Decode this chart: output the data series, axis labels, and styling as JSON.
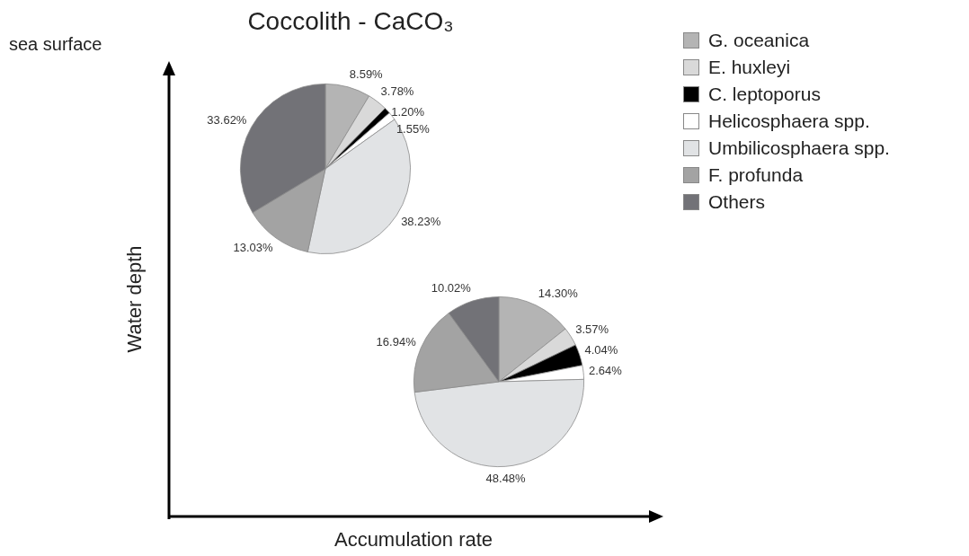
{
  "chart_data": [
    {
      "type": "pie",
      "title": "Coccolith - CaCO₃",
      "xlabel": "Accumulation rate",
      "ylabel": "Water depth",
      "annotations": [
        "sea surface"
      ],
      "legend": "right",
      "categories": [
        "G. oceanica",
        "E. huxleyi",
        "C. leptoporus",
        "Helicosphaera spp.",
        "Umbilicosphaera spp.",
        "F. profunda",
        "Others"
      ],
      "values": [
        8.59,
        3.78,
        1.2,
        1.55,
        38.23,
        13.03,
        33.62
      ],
      "value_labels": [
        "8.59%",
        "3.78%",
        "1.20%",
        "1.55%",
        "38.23%",
        "13.03%",
        "33.62%"
      ],
      "colors": [
        "#b4b4b4",
        "#d9d9d9",
        "#000000",
        "#ffffff",
        "#e1e3e5",
        "#a3a3a3",
        "#727277"
      ]
    },
    {
      "type": "pie",
      "values": [
        14.3,
        3.57,
        4.04,
        2.64,
        48.48,
        16.94,
        10.02
      ],
      "value_labels": [
        "14.30%",
        "3.57%",
        "4.04%",
        "2.64%",
        "48.48%",
        "16.94%",
        "10.02%"
      ],
      "colors": [
        "#b4b4b4",
        "#d9d9d9",
        "#000000",
        "#ffffff",
        "#e1e3e5",
        "#a3a3a3",
        "#727277"
      ]
    }
  ]
}
